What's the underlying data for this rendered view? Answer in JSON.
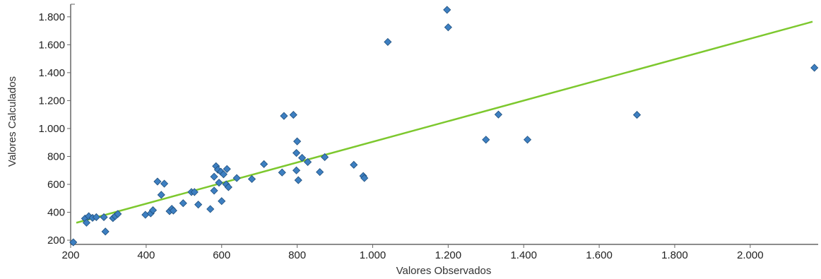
{
  "chart_data": {
    "type": "scatter",
    "xlabel": "Valores Observados",
    "ylabel": "Valores Calculados",
    "xlim": [
      200,
      2180
    ],
    "ylim": [
      170,
      1880
    ],
    "x_ticks": [
      200,
      400,
      600,
      800,
      1000,
      1200,
      1400,
      1600,
      1800,
      2000
    ],
    "x_tick_labels": [
      "200",
      "400",
      "600",
      "800",
      "1.000",
      "1.200",
      "1.400",
      "1.600",
      "1.800",
      "2.000"
    ],
    "y_ticks": [
      200,
      400,
      600,
      800,
      1000,
      1200,
      1400,
      1600,
      1800
    ],
    "y_tick_labels": [
      "200",
      "400",
      "600",
      "800",
      "1.000",
      "1.200",
      "1.400",
      "1.600",
      "1.800"
    ],
    "grid": false,
    "legend": "none",
    "series": [
      {
        "color": "#3d7fc1",
        "marker": "diamond",
        "points": [
          [
            207,
            185
          ],
          [
            238,
            355
          ],
          [
            242,
            325
          ],
          [
            248,
            372
          ],
          [
            258,
            360
          ],
          [
            268,
            365
          ],
          [
            288,
            365
          ],
          [
            292,
            262
          ],
          [
            312,
            358
          ],
          [
            318,
            372
          ],
          [
            325,
            388
          ],
          [
            398,
            382
          ],
          [
            412,
            392
          ],
          [
            418,
            415
          ],
          [
            430,
            620
          ],
          [
            440,
            525
          ],
          [
            448,
            605
          ],
          [
            462,
            408
          ],
          [
            468,
            425
          ],
          [
            472,
            412
          ],
          [
            498,
            465
          ],
          [
            520,
            545
          ],
          [
            528,
            545
          ],
          [
            538,
            455
          ],
          [
            570,
            423
          ],
          [
            580,
            555
          ],
          [
            580,
            655
          ],
          [
            585,
            730
          ],
          [
            590,
            705
          ],
          [
            593,
            612
          ],
          [
            598,
            690
          ],
          [
            600,
            480
          ],
          [
            605,
            672
          ],
          [
            612,
            600
          ],
          [
            614,
            710
          ],
          [
            618,
            580
          ],
          [
            640,
            645
          ],
          [
            680,
            638
          ],
          [
            712,
            745
          ],
          [
            760,
            685
          ],
          [
            765,
            1090
          ],
          [
            790,
            1098
          ],
          [
            798,
            700
          ],
          [
            798,
            825
          ],
          [
            800,
            908
          ],
          [
            803,
            630
          ],
          [
            813,
            790
          ],
          [
            828,
            760
          ],
          [
            860,
            688
          ],
          [
            873,
            795
          ],
          [
            950,
            740
          ],
          [
            975,
            660
          ],
          [
            978,
            645
          ],
          [
            1040,
            1620
          ],
          [
            1197,
            1850
          ],
          [
            1200,
            1725
          ],
          [
            1300,
            920
          ],
          [
            1333,
            1100
          ],
          [
            1410,
            920
          ],
          [
            1700,
            1098
          ],
          [
            2170,
            1435
          ]
        ]
      }
    ],
    "trendline": {
      "color": "#7dc82e",
      "from": [
        215,
        325
      ],
      "to": [
        2165,
        1765
      ]
    }
  }
}
